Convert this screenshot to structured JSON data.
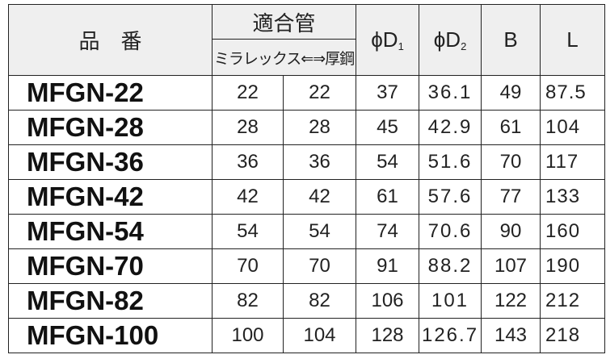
{
  "table": {
    "header": {
      "part_no": "品　番",
      "fit_pipe": "適合管",
      "pipe_types": "ミラレックス⇐⇒厚鋼",
      "d1": {
        "text": "ϕD",
        "sub": "1"
      },
      "d2": {
        "text": "ϕD",
        "sub": "2"
      },
      "b": "B",
      "l": "L"
    },
    "rows": [
      [
        "MFGN-22",
        "22",
        "22",
        "37",
        "36.1",
        "49",
        "87.5"
      ],
      [
        "MFGN-28",
        "28",
        "28",
        "45",
        "42.9",
        "61",
        "104"
      ],
      [
        "MFGN-36",
        "36",
        "36",
        "54",
        "51.6",
        "70",
        "117"
      ],
      [
        "MFGN-42",
        "42",
        "42",
        "61",
        "57.6",
        "77",
        "133"
      ],
      [
        "MFGN-54",
        "54",
        "54",
        "74",
        "70.6",
        "90",
        "160"
      ],
      [
        "MFGN-70",
        "70",
        "70",
        "91",
        "88.2",
        "107",
        "190"
      ],
      [
        "MFGN-82",
        "82",
        "82",
        "106",
        "101",
        "122",
        "212"
      ],
      [
        "MFGN-100",
        "100",
        "104",
        "128",
        "126.7",
        "143",
        "218"
      ]
    ]
  }
}
